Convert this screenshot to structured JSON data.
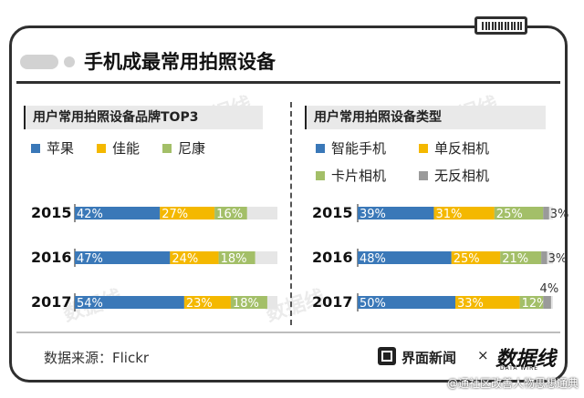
{
  "title": "手机成最常用拍照设备",
  "source": "数据来源：Flickr",
  "brand": {
    "name": "界面新闻",
    "times": "×",
    "partner": "数据线",
    "partner_sub": "DATA WIRE"
  },
  "credit": "@通社区改善人物思想通典",
  "watermark": "数据线",
  "colors": {
    "blue": "#3a78b8",
    "yellow": "#f4b800",
    "green": "#a3bf68",
    "gray": "#9a9a9a",
    "track": "#e6e6e6"
  },
  "chart_data": [
    {
      "type": "bar",
      "stacked": true,
      "orientation": "horizontal",
      "title": "用户常用拍照设备品牌TOP3",
      "categories": [
        "2015",
        "2016",
        "2017"
      ],
      "unit": "%",
      "series": [
        {
          "name": "苹果",
          "color": "#3a78b8",
          "values": [
            42,
            47,
            54
          ]
        },
        {
          "name": "佳能",
          "color": "#f4b800",
          "values": [
            27,
            24,
            23
          ]
        },
        {
          "name": "尼康",
          "color": "#a3bf68",
          "values": [
            16,
            18,
            18
          ]
        }
      ],
      "xlim": [
        0,
        100
      ],
      "legend": "top-left"
    },
    {
      "type": "bar",
      "stacked": true,
      "orientation": "horizontal",
      "title": "用户常用拍照设备类型",
      "categories": [
        "2015",
        "2016",
        "2017"
      ],
      "unit": "%",
      "series": [
        {
          "name": "智能手机",
          "color": "#3a78b8",
          "values": [
            39,
            48,
            50
          ]
        },
        {
          "name": "单反相机",
          "color": "#f4b800",
          "values": [
            31,
            25,
            33
          ]
        },
        {
          "name": "卡片相机",
          "color": "#a3bf68",
          "values": [
            25,
            21,
            12
          ]
        },
        {
          "name": "无反相机",
          "color": "#9a9a9a",
          "values": [
            3,
            3,
            4
          ]
        }
      ],
      "xlim": [
        0,
        100
      ],
      "legend": "top-left"
    }
  ]
}
